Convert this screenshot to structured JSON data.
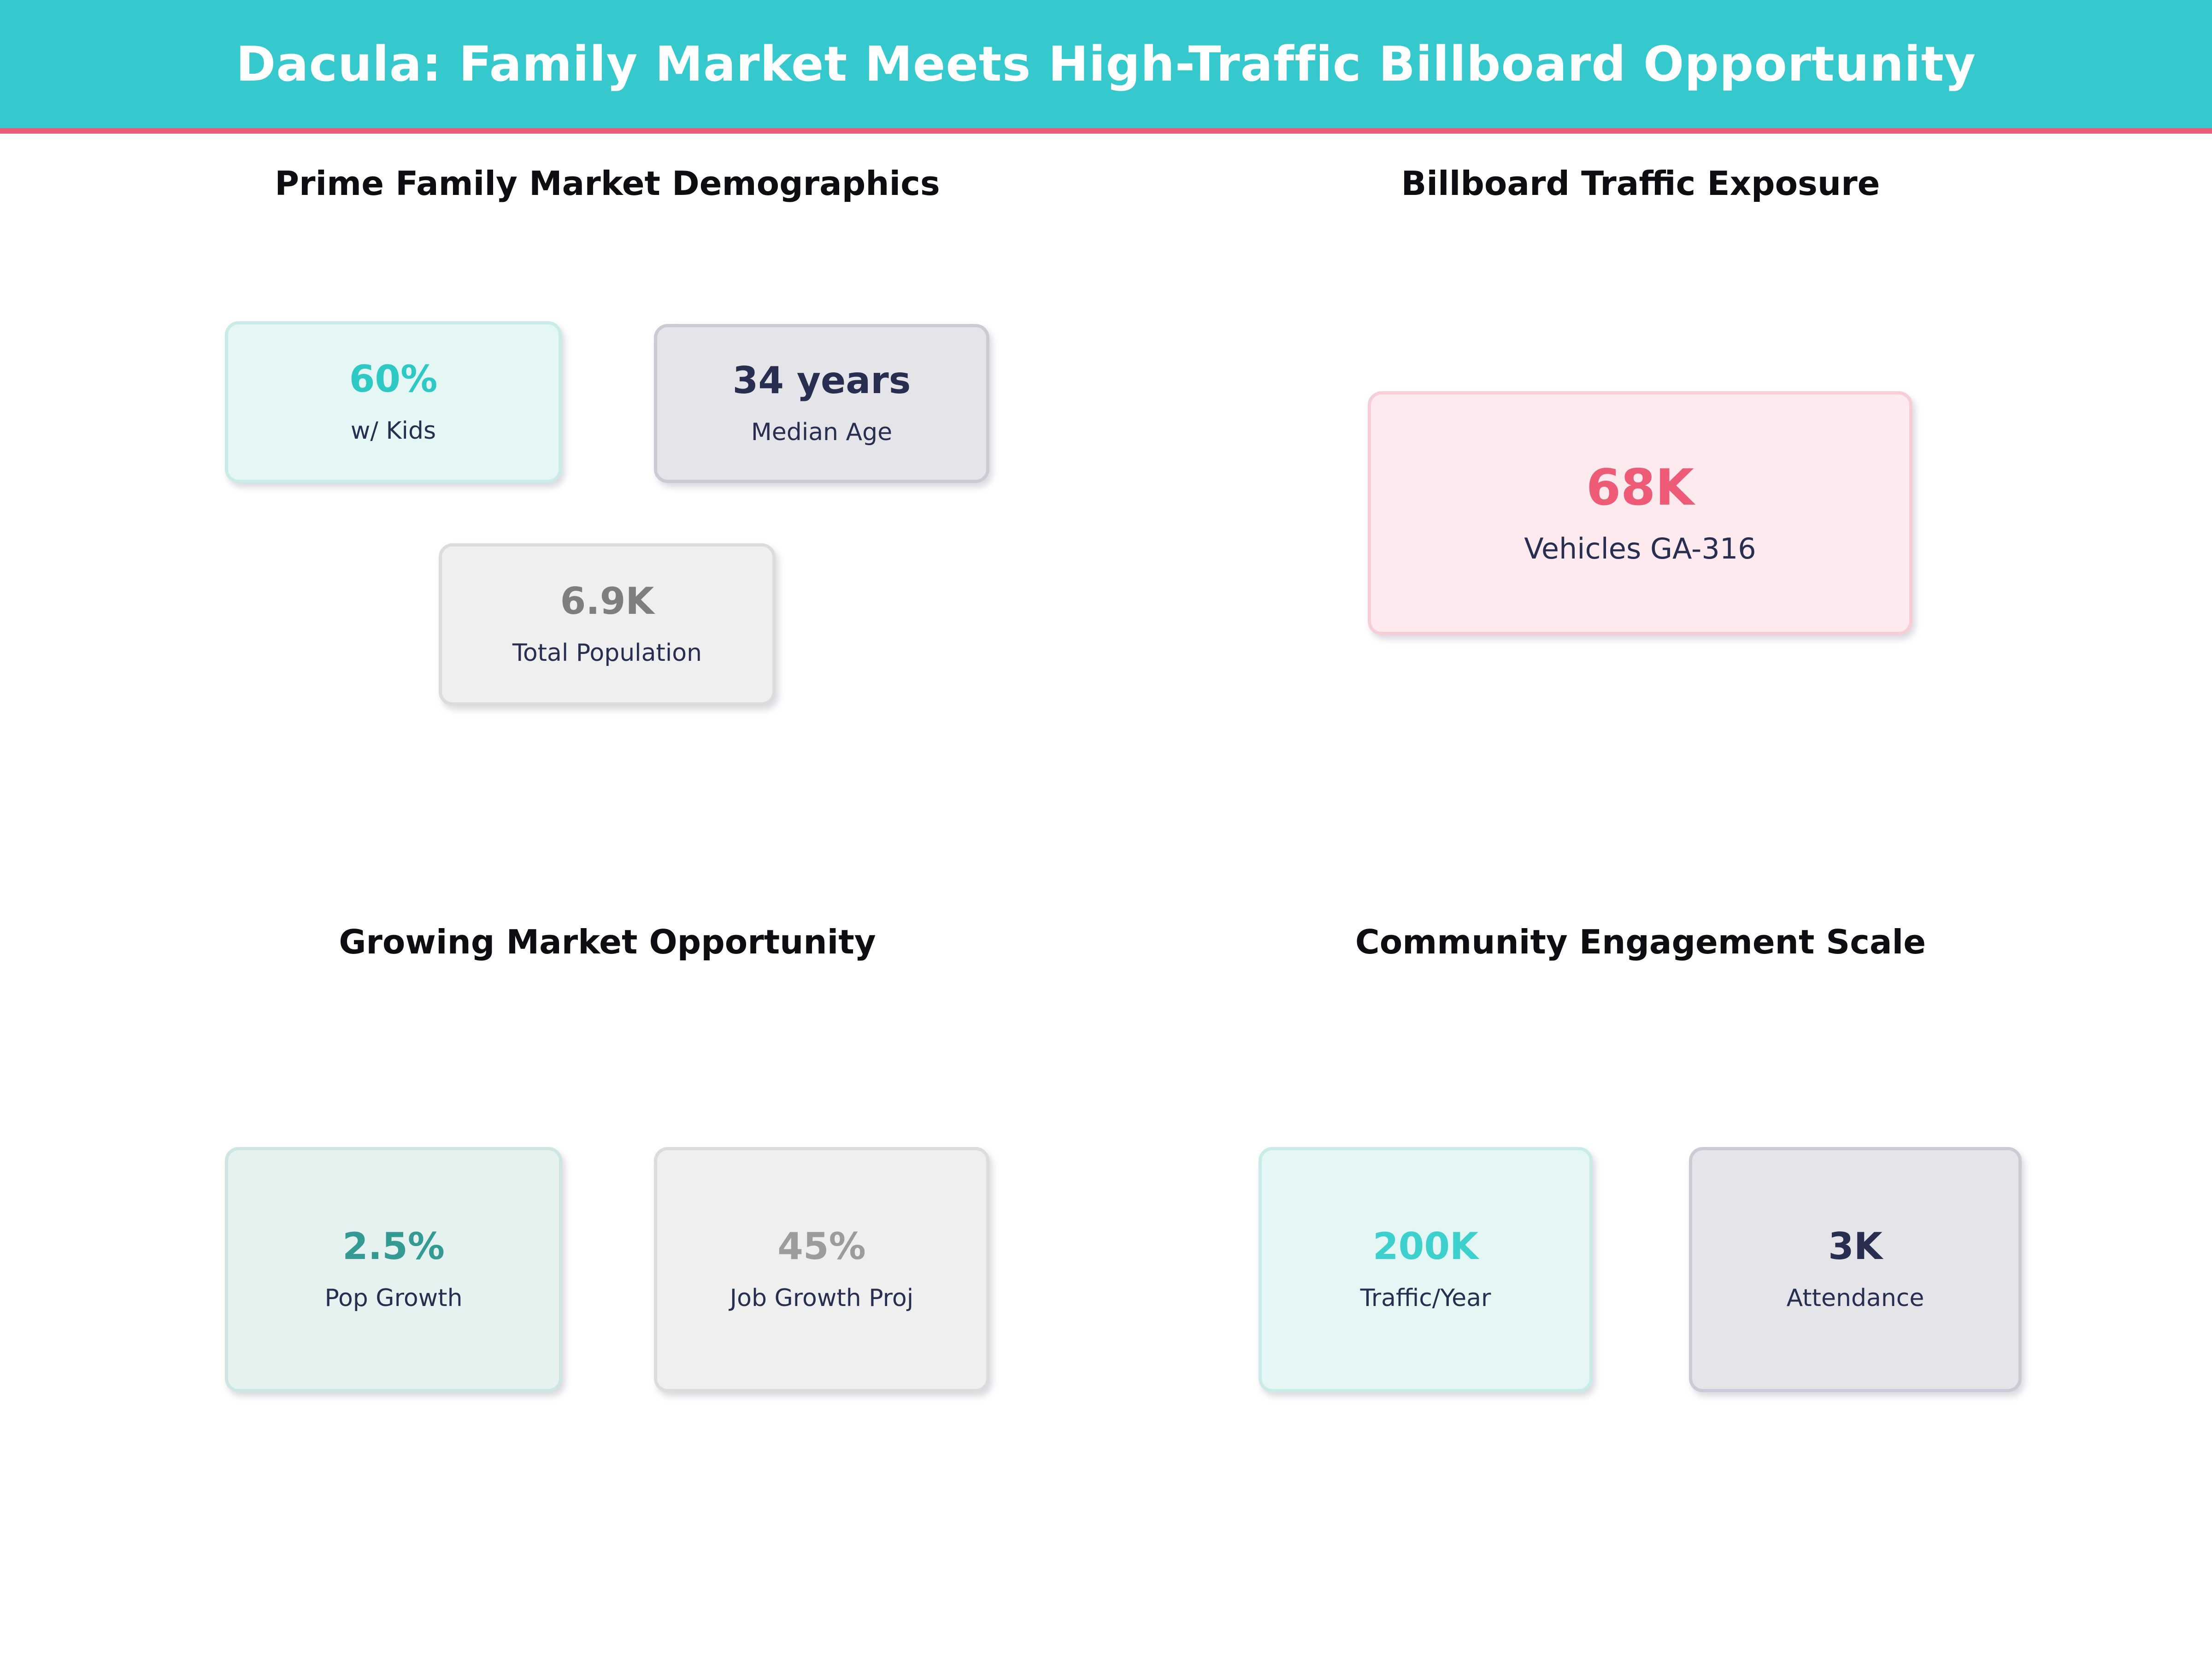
{
  "page": {
    "background_color": "#ffffff"
  },
  "header": {
    "title": "Dacula: Family Market Meets High-Traffic Billboard Opportunity",
    "bg_color": "#35c8cd",
    "text_color": "#ffffff",
    "underline_color": "#e95d7a"
  },
  "sections": [
    {
      "title": "Prime Family Market Demographics",
      "cards": [
        {
          "value": "60%",
          "label": "w/ Kids",
          "value_color": "#2ec9c4",
          "bg_color": "#e4f7f4",
          "border_color": "#c9ece8"
        },
        {
          "value": "34 years",
          "label": "Median Age",
          "value_color": "#272e4f",
          "bg_color": "#e4e4e9",
          "border_color": "#cbcbd5"
        },
        {
          "value": "6.9K",
          "label": "Total Population",
          "value_color": "#7e7e7e",
          "bg_color": "#efefef",
          "border_color": "#dcdcdc"
        }
      ]
    },
    {
      "title": "Billboard Traffic Exposure",
      "cards": [
        {
          "value": "68K",
          "label": "Vehicles GA-316",
          "value_color": "#ee5b76",
          "bg_color": "#fdeaee",
          "border_color": "#f7cdd8"
        }
      ]
    },
    {
      "title": "Growing Market Opportunity",
      "cards": [
        {
          "value": "2.5%",
          "label": "Pop Growth",
          "value_color": "#359a94",
          "bg_color": "#e5f2ef",
          "border_color": "#cde6e1"
        },
        {
          "value": "45%",
          "label": "Job Growth Proj",
          "value_color": "#9c9c9c",
          "bg_color": "#efefef",
          "border_color": "#dcdcdc"
        }
      ]
    },
    {
      "title": "Community Engagement Scale",
      "cards": [
        {
          "value": "200K",
          "label": "Traffic/Year",
          "value_color": "#3ed0cd",
          "bg_color": "#e4f7f4",
          "border_color": "#c9ece8"
        },
        {
          "value": "3K",
          "label": "Attendance",
          "value_color": "#272e4f",
          "bg_color": "#e4e4e9",
          "border_color": "#cbcbd5"
        }
      ]
    }
  ],
  "chart_data": {
    "type": "table",
    "title": "Dacula: Family Market Meets High-Traffic Billboard Opportunity",
    "panels": [
      {
        "title": "Prime Family Market Demographics",
        "stats": [
          {
            "label": "w/ Kids",
            "value": "60%"
          },
          {
            "label": "Median Age",
            "value": "34 years"
          },
          {
            "label": "Total Population",
            "value": "6.9K"
          }
        ]
      },
      {
        "title": "Billboard Traffic Exposure",
        "stats": [
          {
            "label": "Vehicles GA-316",
            "value": "68K"
          }
        ]
      },
      {
        "title": "Growing Market Opportunity",
        "stats": [
          {
            "label": "Pop Growth",
            "value": "2.5%"
          },
          {
            "label": "Job Growth Proj",
            "value": "45%"
          }
        ]
      },
      {
        "title": "Community Engagement Scale",
        "stats": [
          {
            "label": "Traffic/Year",
            "value": "200K"
          },
          {
            "label": "Attendance",
            "value": "3K"
          }
        ]
      }
    ]
  }
}
